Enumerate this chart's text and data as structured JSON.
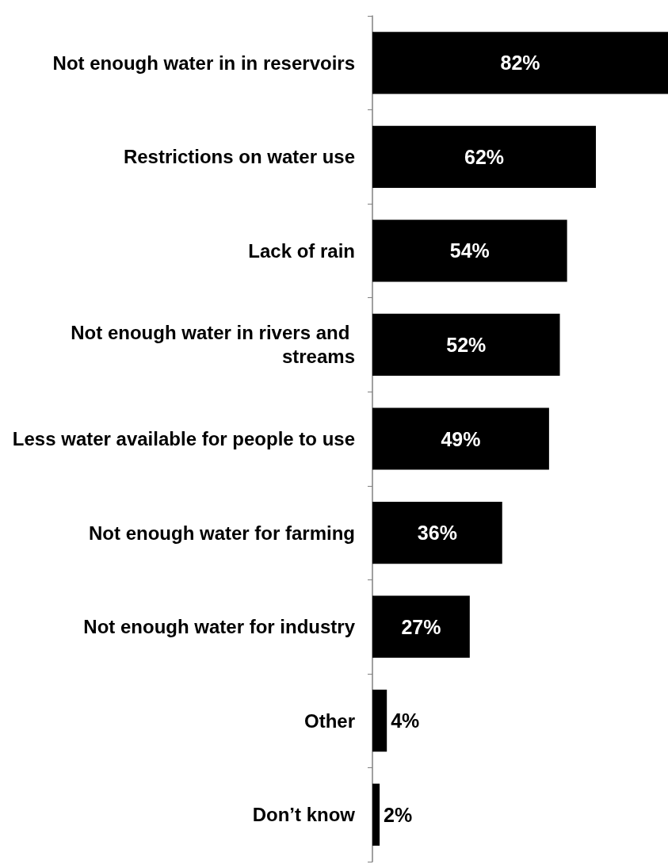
{
  "chart_data": {
    "type": "bar",
    "orientation": "horizontal",
    "categories": [
      "Not enough water in in reservoirs",
      "Restrictions on water use",
      "Lack of rain",
      "Not enough water in rivers and streams",
      "Less water available for people to use",
      "Not enough water for farming",
      "Not enough water for industry",
      "Other",
      "Don’t know"
    ],
    "values": [
      82,
      62,
      54,
      52,
      49,
      36,
      27,
      4,
      2
    ],
    "value_labels": [
      "82%",
      "62%",
      "54%",
      "52%",
      "49%",
      "36%",
      "27%",
      "4%",
      "2%"
    ],
    "color": "#000000"
  }
}
